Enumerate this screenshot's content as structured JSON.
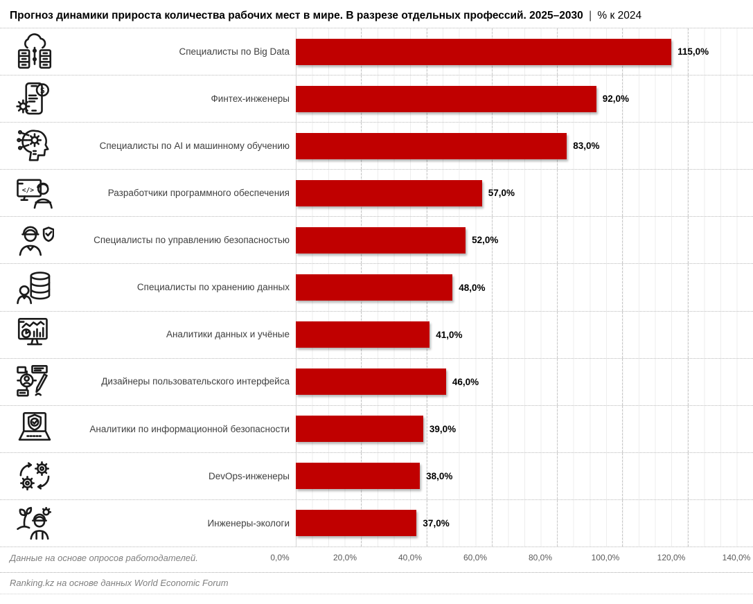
{
  "title": {
    "text_bold": "Прогноз динамики прироста количества рабочих мест в мире. В разрезе отдельных профессий. 2025–2030",
    "divider": "|",
    "text_regular": "% к 2024"
  },
  "chart_data": {
    "type": "bar",
    "orientation": "horizontal",
    "title": "Прогноз динамики прироста количества рабочих мест в мире. В разрезе отдельных профессий. 2025–2030 | % к 2024",
    "categories": [
      "Специалисты по Big Data",
      "Финтех-инженеры",
      "Специалисты по AI и машинному обучению",
      "Разработчики программного обеспечения",
      "Специалисты по управлению безопасностью",
      "Специалисты по хранению данных",
      "Аналитики данных и учёные",
      "Дизайнеры пользовательского интерфейса",
      "Аналитики по информационной безопасности",
      "DevOps-инженеры",
      "Инженеры-экологи"
    ],
    "values": [
      115.0,
      92.0,
      83.0,
      57.0,
      52.0,
      48.0,
      41.0,
      46.0,
      39.0,
      38.0,
      37.0
    ],
    "value_labels": [
      "115,0%",
      "92,0%",
      "83,0%",
      "57,0%",
      "52,0%",
      "48,0%",
      "41,0%",
      "46,0%",
      "39,0%",
      "38,0%",
      "37,0%"
    ],
    "icons": [
      "big-data-icon",
      "fintech-icon",
      "ai-ml-icon",
      "software-developer-icon",
      "security-management-icon",
      "data-storage-icon",
      "data-analyst-icon",
      "ui-designer-icon",
      "infosec-analyst-icon",
      "devops-icon",
      "eco-engineer-icon"
    ],
    "xlabel": "",
    "ylabel": "",
    "xlim": [
      0,
      140
    ],
    "x_ticks": [
      "0,0%",
      "20,0%",
      "40,0%",
      "60,0%",
      "80,0%",
      "100,0%",
      "120,0%",
      "140,0%"
    ],
    "grid": "on",
    "legend": "none",
    "bar_color": "#C00000"
  },
  "icon_glyphs": {
    "code": "</>",
    "dollar": "$"
  },
  "footer": {
    "note": "Данные на основе опросов работодателей.",
    "source": "Ranking.kz на основе данных World Economic Forum"
  }
}
